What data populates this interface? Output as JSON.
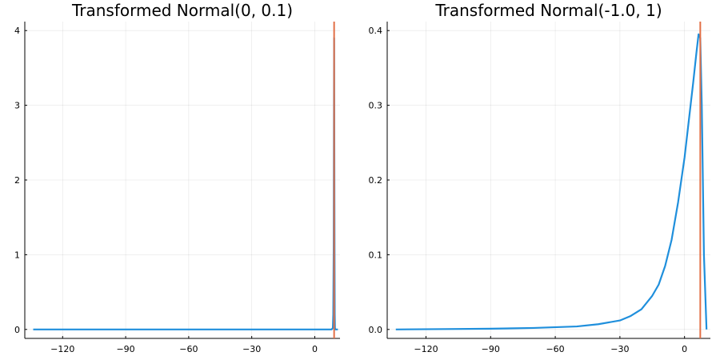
{
  "chart_data": [
    {
      "type": "line",
      "title": "Transformed Normal(0, 0.1)",
      "xlabel": "",
      "ylabel": "",
      "xlim": [
        -138,
        12
      ],
      "ylim": [
        -0.12,
        4.12
      ],
      "xticks": [
        -120,
        -90,
        -60,
        -30,
        0
      ],
      "yticks": [
        0,
        1,
        2,
        3,
        4
      ],
      "grid": true,
      "legend": "none",
      "series": [
        {
          "color": "#1f8fdc",
          "style": "line",
          "x": [
            -134,
            -100,
            -60,
            -20,
            0,
            5,
            8,
            8.6,
            8.8,
            9.0,
            9.1,
            9.2,
            9.3,
            9.4,
            9.5,
            9.6,
            9.8,
            10,
            11
          ],
          "y": [
            0,
            0,
            0,
            0,
            0,
            0,
            0,
            0.02,
            0.2,
            1.1,
            2.5,
            3.9,
            2.5,
            1.1,
            0.2,
            0.02,
            0,
            0,
            0
          ]
        },
        {
          "color": "#e26f46",
          "style": "vline",
          "x": 9.2
        }
      ]
    },
    {
      "type": "line",
      "title": "Transformed Normal(-1.0, 1)",
      "xlabel": "",
      "ylabel": "",
      "xlim": [
        -138,
        12
      ],
      "ylim": [
        -0.012,
        0.412
      ],
      "xticks": [
        -120,
        -90,
        -60,
        -30,
        0
      ],
      "yticks": [
        0.0,
        0.1,
        0.2,
        0.3,
        0.4
      ],
      "grid": true,
      "legend": "none",
      "series": [
        {
          "color": "#1f8fdc",
          "style": "line",
          "x": [
            -134,
            -110,
            -90,
            -70,
            -50,
            -40,
            -30,
            -25,
            -20,
            -15,
            -12,
            -9,
            -6,
            -3,
            0,
            2,
            4,
            5.5,
            6.5,
            7.3,
            8,
            9,
            10.2
          ],
          "y": [
            0,
            0.0005,
            0.001,
            0.002,
            0.004,
            0.007,
            0.012,
            0.018,
            0.027,
            0.045,
            0.06,
            0.085,
            0.12,
            0.17,
            0.23,
            0.28,
            0.33,
            0.37,
            0.395,
            0.39,
            0.3,
            0.1,
            0
          ]
        },
        {
          "color": "#e26f46",
          "style": "vline",
          "x": 7.3
        }
      ]
    }
  ]
}
